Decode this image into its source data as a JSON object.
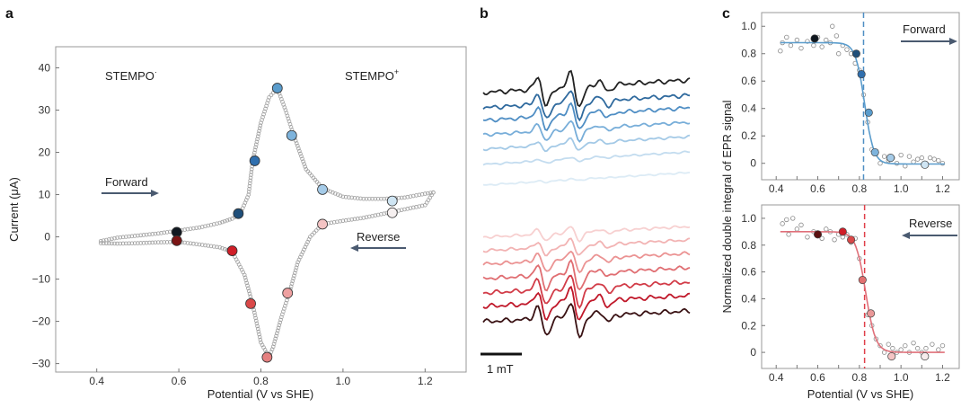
{
  "panels": {
    "a": "a",
    "b": "b",
    "c": "c"
  },
  "colors": {
    "forward_arrow": "#4a5a70",
    "reverse_arrow": "#4a5a70",
    "cv_trace": "#9a9a9a",
    "fit_forward": "#5a9ccc",
    "fit_reverse": "#e0707a",
    "vline_forward": "#4f8ec4",
    "vline_reverse": "#e0404a"
  },
  "chart_data": [
    {
      "id": "cv",
      "type": "scatter",
      "title": "",
      "xlabel": "Potential (V vs SHE)",
      "ylabel": "Current (μA)",
      "xlim": [
        0.3,
        1.3
      ],
      "ylim": [
        -32,
        45
      ],
      "xticks": [
        0.4,
        0.6,
        0.8,
        1.0,
        1.2
      ],
      "xtick_labels": [
        "0.4",
        "0.6",
        "0.8",
        "1.0",
        "1.2"
      ],
      "yticks": [
        -30,
        -20,
        -10,
        0,
        10,
        20,
        30,
        40
      ],
      "ytick_labels": [
        "−30",
        "−20",
        "−10",
        "0",
        "10",
        "20",
        "30",
        "40"
      ],
      "annotations": {
        "left_species": "STEMPO",
        "left_sup": "·",
        "right_species": "STEMPO",
        "right_sup": "+",
        "forward": "Forward",
        "reverse": "Reverse"
      },
      "forward_trace": [
        [
          0.41,
          -1.0
        ],
        [
          0.45,
          -0.2
        ],
        [
          0.5,
          0.3
        ],
        [
          0.55,
          0.8
        ],
        [
          0.6,
          1.5
        ],
        [
          0.65,
          2.2
        ],
        [
          0.7,
          3.3
        ],
        [
          0.73,
          4.3
        ],
        [
          0.75,
          5.5
        ],
        [
          0.77,
          10
        ],
        [
          0.78,
          18
        ],
        [
          0.8,
          27
        ],
        [
          0.82,
          33
        ],
        [
          0.84,
          35.2
        ],
        [
          0.86,
          30
        ],
        [
          0.88,
          24
        ],
        [
          0.91,
          16
        ],
        [
          0.95,
          11.5
        ],
        [
          1.0,
          9.5
        ],
        [
          1.05,
          9
        ],
        [
          1.1,
          9
        ],
        [
          1.15,
          9.3
        ],
        [
          1.2,
          10.2
        ],
        [
          1.22,
          10.5
        ]
      ],
      "reverse_trace": [
        [
          1.22,
          10.5
        ],
        [
          1.2,
          7.5
        ],
        [
          1.15,
          6.5
        ],
        [
          1.1,
          5.5
        ],
        [
          1.05,
          4.5
        ],
        [
          1.0,
          3.8
        ],
        [
          0.95,
          3.0
        ],
        [
          0.92,
          0
        ],
        [
          0.89,
          -6
        ],
        [
          0.87,
          -13
        ],
        [
          0.85,
          -19
        ],
        [
          0.83,
          -26
        ],
        [
          0.82,
          -28.5
        ],
        [
          0.8,
          -25
        ],
        [
          0.78,
          -16
        ],
        [
          0.76,
          -9
        ],
        [
          0.73,
          -3.5
        ],
        [
          0.7,
          -2.5
        ],
        [
          0.65,
          -1.8
        ],
        [
          0.6,
          -1.2
        ],
        [
          0.55,
          -1.3
        ],
        [
          0.5,
          -1.5
        ],
        [
          0.45,
          -1.6
        ],
        [
          0.41,
          -1.5
        ]
      ],
      "forward_points": [
        {
          "x": 0.595,
          "y": 1.1,
          "color": "#101820"
        },
        {
          "x": 0.745,
          "y": 5.5,
          "color": "#1f4f7a"
        },
        {
          "x": 0.785,
          "y": 18.0,
          "color": "#2f6fae"
        },
        {
          "x": 0.84,
          "y": 35.2,
          "color": "#5a9ccc"
        },
        {
          "x": 0.875,
          "y": 24.0,
          "color": "#7db3dc"
        },
        {
          "x": 0.95,
          "y": 11.2,
          "color": "#a5cbe8"
        },
        {
          "x": 1.12,
          "y": 8.5,
          "color": "#cfe5f3"
        }
      ],
      "reverse_points": [
        {
          "x": 1.12,
          "y": 5.7,
          "color": "#f6f0f0"
        },
        {
          "x": 0.95,
          "y": 3.0,
          "color": "#f4c4c4"
        },
        {
          "x": 0.865,
          "y": -13.3,
          "color": "#eea0a0"
        },
        {
          "x": 0.815,
          "y": -28.5,
          "color": "#e58080"
        },
        {
          "x": 0.775,
          "y": -15.8,
          "color": "#d94848"
        },
        {
          "x": 0.73,
          "y": -3.3,
          "color": "#d01e28"
        },
        {
          "x": 0.595,
          "y": -0.9,
          "color": "#7a1414"
        }
      ]
    },
    {
      "id": "epr",
      "type": "line",
      "title": "",
      "scale_bar_label": "1 mT",
      "series": [
        {
          "name": "f1",
          "color": "#222222",
          "amplitude": 1.0
        },
        {
          "name": "f2",
          "color": "#2f6a9e",
          "amplitude": 0.9
        },
        {
          "name": "f3",
          "color": "#4f8ec4",
          "amplitude": 0.75
        },
        {
          "name": "f4",
          "color": "#78aed9",
          "amplitude": 0.55
        },
        {
          "name": "f5",
          "color": "#a3c9e6",
          "amplitude": 0.35
        },
        {
          "name": "f6",
          "color": "#c3dcef",
          "amplitude": 0.15
        },
        {
          "name": "f7",
          "color": "#dcebf5",
          "amplitude": 0.05
        },
        {
          "name": "r1",
          "color": "#f7d0d0",
          "amplitude": 0.4
        },
        {
          "name": "r2",
          "color": "#f2b3b3",
          "amplitude": 0.5
        },
        {
          "name": "r3",
          "color": "#eb9393",
          "amplitude": 0.65
        },
        {
          "name": "r4",
          "color": "#e06e72",
          "amplitude": 0.8
        },
        {
          "name": "r5",
          "color": "#d23c48",
          "amplitude": 0.9
        },
        {
          "name": "r6",
          "color": "#c0182a",
          "amplitude": 1.0
        },
        {
          "name": "r7",
          "color": "#3a1214",
          "amplitude": 1.0
        }
      ]
    },
    {
      "id": "forward-integral",
      "type": "scatter",
      "xlim": [
        0.33,
        1.28
      ],
      "ylim": [
        -0.12,
        1.1
      ],
      "xticks": [
        0.4,
        0.5,
        0.6,
        0.7,
        0.8,
        0.9,
        1.0,
        1.1,
        1.2
      ],
      "xtick_labels": [
        "0.4",
        "0.5",
        "0.6",
        "0.7",
        "0.8",
        "0.9",
        "1.0",
        "1.1",
        "1.2"
      ],
      "yticks": [
        0,
        0.2,
        0.4,
        0.6,
        0.8,
        1.0
      ],
      "ytick_labels": [
        "0",
        "0.2",
        "0.4",
        "0.6",
        "0.8",
        "1.0"
      ],
      "label": "Forward",
      "vline_x": 0.82,
      "fit": {
        "top": 0.88,
        "bottom": -0.005,
        "midpoint": 0.825,
        "width": 0.022
      },
      "open_points": [
        [
          0.42,
          0.82
        ],
        [
          0.43,
          0.88
        ],
        [
          0.45,
          0.92
        ],
        [
          0.47,
          0.86
        ],
        [
          0.5,
          0.9
        ],
        [
          0.52,
          0.84
        ],
        [
          0.55,
          0.89
        ],
        [
          0.58,
          0.86
        ],
        [
          0.6,
          0.92
        ],
        [
          0.62,
          0.85
        ],
        [
          0.64,
          0.9
        ],
        [
          0.66,
          0.88
        ],
        [
          0.67,
          1.0
        ],
        [
          0.69,
          0.93
        ],
        [
          0.7,
          0.8
        ],
        [
          0.72,
          0.86
        ],
        [
          0.74,
          0.83
        ],
        [
          0.76,
          0.8
        ],
        [
          0.78,
          0.73
        ],
        [
          0.8,
          0.68
        ],
        [
          0.82,
          0.5
        ],
        [
          0.84,
          0.3
        ],
        [
          0.86,
          0.1
        ],
        [
          0.88,
          0.07
        ],
        [
          0.9,
          0.0
        ],
        [
          0.92,
          0.05
        ],
        [
          0.94,
          0.02
        ],
        [
          0.96,
          0.04
        ],
        [
          0.98,
          0.0
        ],
        [
          1.0,
          0.06
        ],
        [
          1.02,
          -0.02
        ],
        [
          1.04,
          0.05
        ],
        [
          1.06,
          0.01
        ],
        [
          1.08,
          0.03
        ],
        [
          1.1,
          0.04
        ],
        [
          1.12,
          0.0
        ],
        [
          1.14,
          0.04
        ],
        [
          1.16,
          0.03
        ],
        [
          1.18,
          0.02
        ],
        [
          1.2,
          0.0
        ]
      ],
      "filled_points": [
        {
          "x": 0.585,
          "y": 0.91,
          "color": "#101820"
        },
        {
          "x": 0.785,
          "y": 0.8,
          "color": "#1f4f7a"
        },
        {
          "x": 0.81,
          "y": 0.65,
          "color": "#2f6fae"
        },
        {
          "x": 0.845,
          "y": 0.37,
          "color": "#5a9ccc"
        },
        {
          "x": 0.875,
          "y": 0.08,
          "color": "#7db3dc"
        },
        {
          "x": 0.95,
          "y": 0.04,
          "color": "#a5cbe8"
        },
        {
          "x": 1.115,
          "y": -0.01,
          "color": "#cfe5f3"
        }
      ]
    },
    {
      "id": "reverse-integral",
      "type": "scatter",
      "xlim": [
        0.33,
        1.28
      ],
      "ylim": [
        -0.12,
        1.1
      ],
      "xticks": [
        0.4,
        0.5,
        0.6,
        0.7,
        0.8,
        0.9,
        1.0,
        1.1,
        1.2
      ],
      "xtick_labels": [
        "0.4",
        "0.5",
        "0.6",
        "0.7",
        "0.8",
        "0.9",
        "1.0",
        "1.1",
        "1.2"
      ],
      "yticks": [
        0,
        0.2,
        0.4,
        0.6,
        0.8,
        1.0
      ],
      "ytick_labels": [
        "0",
        "0.2",
        "0.4",
        "0.6",
        "0.8",
        "1.0"
      ],
      "label": "Reverse",
      "vline_x": 0.825,
      "fit": {
        "top": 0.9,
        "bottom": 0.0,
        "midpoint": 0.83,
        "width": 0.024
      },
      "open_points": [
        [
          0.43,
          0.96
        ],
        [
          0.45,
          0.99
        ],
        [
          0.46,
          0.88
        ],
        [
          0.48,
          1.0
        ],
        [
          0.5,
          0.92
        ],
        [
          0.52,
          0.95
        ],
        [
          0.55,
          0.86
        ],
        [
          0.58,
          0.9
        ],
        [
          0.6,
          0.87
        ],
        [
          0.62,
          0.85
        ],
        [
          0.64,
          0.92
        ],
        [
          0.66,
          0.9
        ],
        [
          0.68,
          0.84
        ],
        [
          0.7,
          0.88
        ],
        [
          0.72,
          0.86
        ],
        [
          0.74,
          0.88
        ],
        [
          0.76,
          0.82
        ],
        [
          0.78,
          0.85
        ],
        [
          0.8,
          0.7
        ],
        [
          0.82,
          0.55
        ],
        [
          0.84,
          0.28
        ],
        [
          0.86,
          0.2
        ],
        [
          0.88,
          0.1
        ],
        [
          0.9,
          0.05
        ],
        [
          0.92,
          0.0
        ],
        [
          0.94,
          0.06
        ],
        [
          0.96,
          0.03
        ],
        [
          0.98,
          0.0
        ],
        [
          1.0,
          0.02
        ],
        [
          1.02,
          0.05
        ],
        [
          1.04,
          0.0
        ],
        [
          1.06,
          0.07
        ],
        [
          1.08,
          0.03
        ],
        [
          1.1,
          0.0
        ],
        [
          1.12,
          0.03
        ],
        [
          1.15,
          0.06
        ],
        [
          1.18,
          0.02
        ],
        [
          1.2,
          0.05
        ]
      ],
      "filled_points": [
        {
          "x": 0.6,
          "y": 0.88,
          "color": "#5a1010"
        },
        {
          "x": 0.72,
          "y": 0.9,
          "color": "#d01e28"
        },
        {
          "x": 0.76,
          "y": 0.84,
          "color": "#d94848"
        },
        {
          "x": 0.815,
          "y": 0.54,
          "color": "#e27070"
        },
        {
          "x": 0.855,
          "y": 0.29,
          "color": "#ea9898"
        },
        {
          "x": 0.955,
          "y": -0.03,
          "color": "#f4c4c4"
        },
        {
          "x": 1.115,
          "y": -0.03,
          "color": "#f6ecec"
        }
      ]
    }
  ],
  "shared_labels": {
    "c_ylabel": "Normalized double integral of EPR signal",
    "c_xlabel": "Potential (V vs SHE)"
  }
}
